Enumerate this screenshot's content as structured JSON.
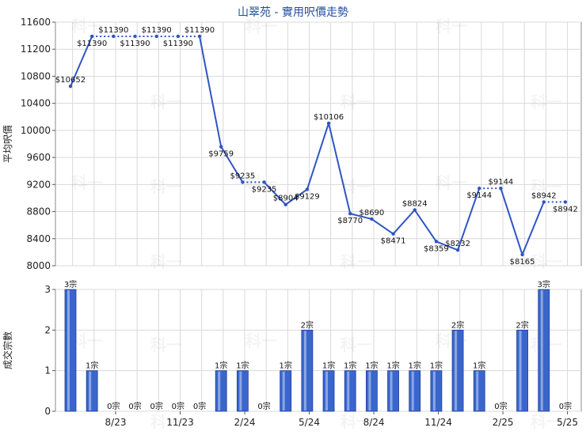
{
  "chart_data": [
    {
      "type": "line",
      "title": "山翠苑 - 實用呎價走勢",
      "ylabel": "平均呎價",
      "ylim": [
        8000,
        11600
      ],
      "yticks": [
        "8000",
        "8400",
        "8800",
        "9200",
        "9600",
        "10000",
        "10400",
        "10800",
        "11200",
        "11600"
      ],
      "xticks": [
        "8/23",
        "11/23",
        "2/24",
        "5/24",
        "8/24",
        "11/24",
        "2/25",
        "5/25"
      ],
      "grid": true,
      "series": [
        {
          "values": [
            10652,
            11390,
            11390,
            11390,
            11390,
            11390,
            11390,
            9759,
            9235,
            9235,
            8904,
            9129,
            10106,
            8770,
            8690,
            8471,
            8824,
            8359,
            8232,
            9144,
            9144,
            8165,
            8942,
            8942
          ],
          "labels": [
            "$10652",
            "$11390",
            "$11390",
            "$11390",
            "$11390",
            "$11390",
            "$11390",
            "$9759",
            "$9235",
            "$9235",
            "$8904",
            "$9129",
            "$10106",
            "$8770",
            "$8690",
            "$8471",
            "$8824",
            "$8359",
            "$8232",
            "$9144",
            "$9144",
            "$8165",
            "$8942",
            "$8942"
          ],
          "color": "#2f55c4"
        }
      ]
    },
    {
      "type": "bar",
      "ylabel": "成交宗數",
      "ylim": [
        0,
        3
      ],
      "yticks": [
        "0",
        "1",
        "2",
        "3"
      ],
      "values": [
        3,
        1,
        0,
        0,
        0,
        0,
        0,
        1,
        1,
        0,
        1,
        2,
        1,
        1,
        1,
        1,
        1,
        1,
        2,
        1,
        0,
        2,
        3,
        0
      ],
      "labels": [
        "3宗",
        "1宗",
        "0宗",
        "0宗",
        "0宗",
        "0宗",
        "0宗",
        "1宗",
        "1宗",
        "0宗",
        "1宗",
        "2宗",
        "1宗",
        "1宗",
        "1宗",
        "1宗",
        "1宗",
        "1宗",
        "2宗",
        "1宗",
        "0宗",
        "2宗",
        "3宗",
        "0宗"
      ],
      "color": "#3a66cc"
    }
  ]
}
